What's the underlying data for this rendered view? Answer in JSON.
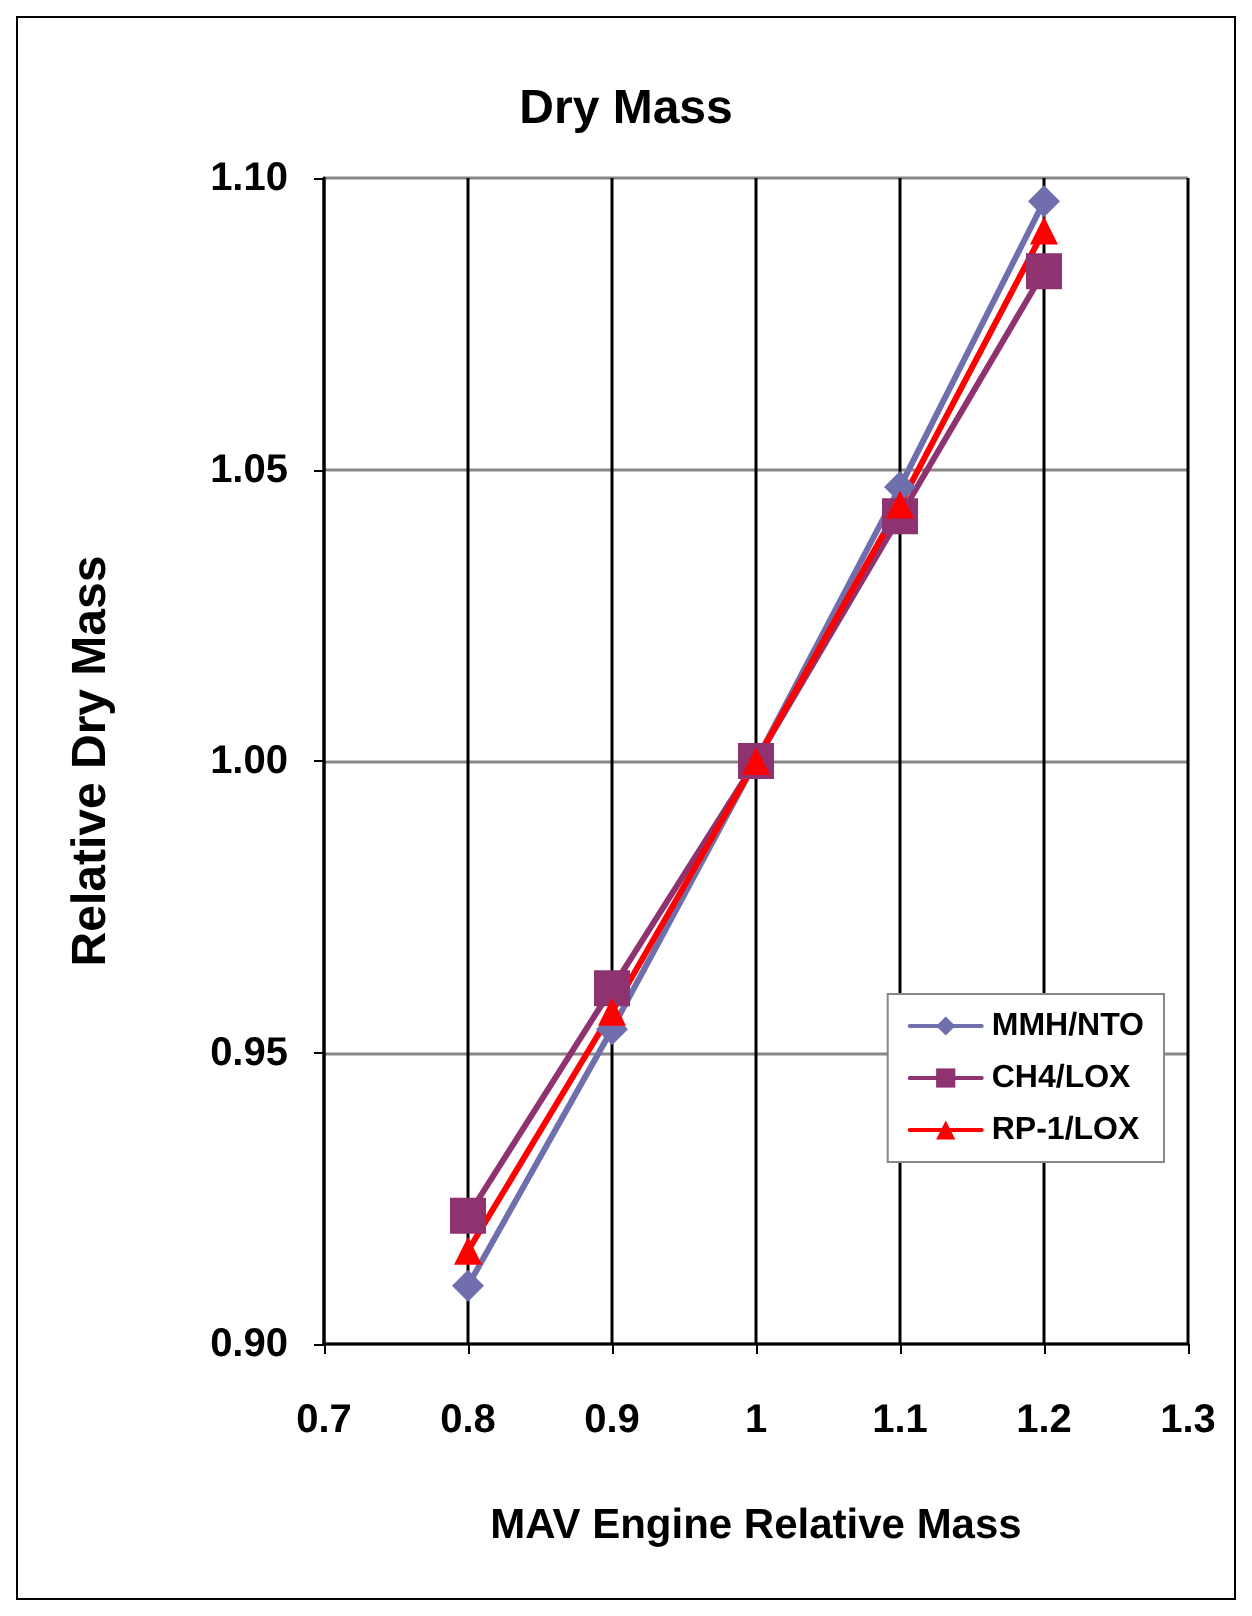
{
  "chart_data": {
    "type": "line",
    "title": "Dry Mass",
    "xlabel": "MAV Engine Relative Mass",
    "ylabel": "Relative Dry Mass",
    "x": [
      0.8,
      0.9,
      1,
      1.1,
      1.2
    ],
    "series": [
      {
        "name": "MMH/NTO",
        "color": "#6f6fae",
        "marker": "diamond",
        "values": [
          0.91,
          0.954,
          1.0,
          1.047,
          1.096
        ]
      },
      {
        "name": "CH4/LOX",
        "color": "#8e3270",
        "marker": "square",
        "values": [
          0.922,
          0.961,
          1.0,
          1.042,
          1.084
        ]
      },
      {
        "name": "RP-1/LOX",
        "color": "#ff0000",
        "marker": "triangle",
        "values": [
          0.916,
          0.957,
          1.0,
          1.044,
          1.091
        ]
      }
    ],
    "xlim": [
      0.7,
      1.3
    ],
    "xticks": [
      0.7,
      0.8,
      0.9,
      1,
      1.1,
      1.2,
      1.3
    ],
    "ylim": [
      0.9,
      1.1
    ],
    "yticks": [
      {
        "value": 0.9,
        "label": "0.90"
      },
      {
        "value": 0.95,
        "label": "0.95"
      },
      {
        "value": 1.0,
        "label": "1.00"
      },
      {
        "value": 1.05,
        "label": "1.05"
      },
      {
        "value": 1.1,
        "label": "1.10"
      }
    ],
    "grid": true,
    "legend": "right",
    "line_style": "solid"
  }
}
